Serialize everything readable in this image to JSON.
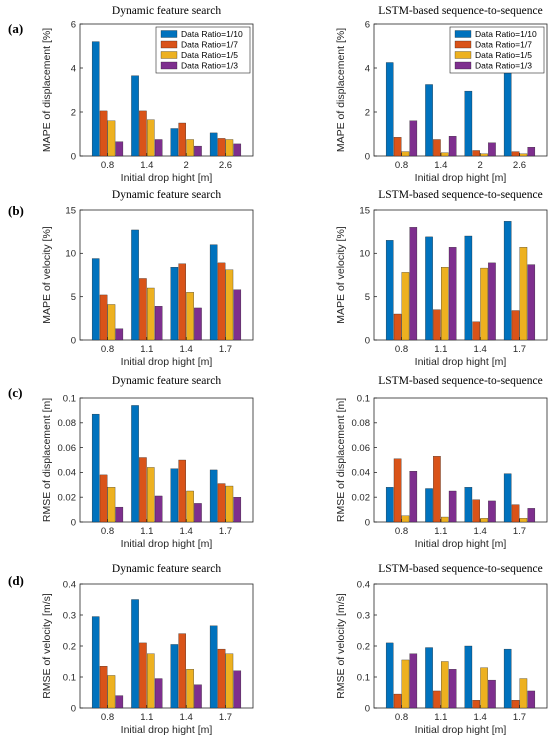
{
  "row_labels": [
    "(a)",
    "(b)",
    "(c)",
    "(d)"
  ],
  "legend": {
    "entries": [
      "Data Ratio=1/10",
      "Data Ratio=1/7",
      "Data Ratio=1/5",
      "Data Ratio=1/3"
    ],
    "placement": "top-right"
  },
  "colors": [
    "#0072BD",
    "#D95319",
    "#EDB120",
    "#7E2F8E"
  ],
  "chart_data": [
    {
      "type": "bar",
      "title": "Dynamic feature search",
      "xlabel": "Initial drop hight [m]",
      "ylabel": "MAPE of displacement [%]",
      "categories": [
        "0.8",
        "1.4",
        "2",
        "2.6"
      ],
      "ylim": [
        0,
        6
      ],
      "yticks": [
        "0",
        "2",
        "4",
        "6"
      ],
      "legend": true,
      "grid": false,
      "series": [
        {
          "name": "Data Ratio=1/10",
          "values": [
            5.2,
            3.65,
            1.25,
            1.05
          ]
        },
        {
          "name": "Data Ratio=1/7",
          "values": [
            2.05,
            2.05,
            1.5,
            0.8
          ]
        },
        {
          "name": "Data Ratio=1/5",
          "values": [
            1.6,
            1.65,
            0.75,
            0.75
          ]
        },
        {
          "name": "Data Ratio=1/3",
          "values": [
            0.65,
            0.75,
            0.45,
            0.55
          ]
        }
      ]
    },
    {
      "type": "bar",
      "title": "LSTM-based sequence-to-sequence",
      "xlabel": "Initial drop hight [m]",
      "ylabel": "MAPE of displacement [%]",
      "categories": [
        "0.8",
        "1.4",
        "2",
        "2.6"
      ],
      "ylim": [
        0,
        6
      ],
      "yticks": [
        "0",
        "2",
        "4",
        "6"
      ],
      "legend": true,
      "grid": false,
      "series": [
        {
          "name": "Data Ratio=1/10",
          "values": [
            4.25,
            3.25,
            2.95,
            3.9
          ]
        },
        {
          "name": "Data Ratio=1/7",
          "values": [
            0.85,
            0.75,
            0.25,
            0.2
          ]
        },
        {
          "name": "Data Ratio=1/5",
          "values": [
            0.2,
            0.15,
            0.1,
            0.1
          ]
        },
        {
          "name": "Data Ratio=1/3",
          "values": [
            1.6,
            0.9,
            0.6,
            0.4
          ]
        }
      ]
    },
    {
      "type": "bar",
      "title": "Dynamic feature search",
      "xlabel": "Initial drop hight [m]",
      "ylabel": "MAPE of velocity [%]",
      "categories": [
        "0.8",
        "1.1",
        "1.4",
        "1.7"
      ],
      "ylim": [
        0,
        15
      ],
      "yticks": [
        "0",
        "5",
        "10",
        "15"
      ],
      "legend": false,
      "grid": false,
      "series": [
        {
          "name": "Data Ratio=1/10",
          "values": [
            9.4,
            12.7,
            8.4,
            11.0
          ]
        },
        {
          "name": "Data Ratio=1/7",
          "values": [
            5.2,
            7.1,
            8.8,
            8.9
          ]
        },
        {
          "name": "Data Ratio=1/5",
          "values": [
            4.1,
            6.0,
            5.5,
            8.1
          ]
        },
        {
          "name": "Data Ratio=1/3",
          "values": [
            1.3,
            3.9,
            3.7,
            5.8
          ]
        }
      ]
    },
    {
      "type": "bar",
      "title": "LSTM-based sequence-to-sequence",
      "xlabel": "Initial drop hight [m]",
      "ylabel": "MAPE of velocity [%]",
      "categories": [
        "0.8",
        "1.1",
        "1.4",
        "1.7"
      ],
      "ylim": [
        0,
        15
      ],
      "yticks": [
        "0",
        "5",
        "10",
        "15"
      ],
      "legend": false,
      "grid": false,
      "series": [
        {
          "name": "Data Ratio=1/10",
          "values": [
            11.5,
            11.9,
            12.0,
            13.7
          ]
        },
        {
          "name": "Data Ratio=1/7",
          "values": [
            3.0,
            3.5,
            2.1,
            3.4
          ]
        },
        {
          "name": "Data Ratio=1/5",
          "values": [
            7.8,
            8.4,
            8.3,
            10.7
          ]
        },
        {
          "name": "Data Ratio=1/3",
          "values": [
            13.0,
            10.7,
            8.9,
            8.7
          ]
        }
      ]
    },
    {
      "type": "bar",
      "title": "Dynamic feature search",
      "xlabel": "Initial drop hight [m]",
      "ylabel": "RMSE of displacement [m]",
      "categories": [
        "0.8",
        "1.1",
        "1.4",
        "1.7"
      ],
      "ylim": [
        0,
        0.1
      ],
      "yticks": [
        "0",
        "0.02",
        "0.04",
        "0.06",
        "0.08",
        "0.1"
      ],
      "legend": false,
      "grid": false,
      "series": [
        {
          "name": "Data Ratio=1/10",
          "values": [
            0.087,
            0.094,
            0.043,
            0.042
          ]
        },
        {
          "name": "Data Ratio=1/7",
          "values": [
            0.038,
            0.052,
            0.05,
            0.031
          ]
        },
        {
          "name": "Data Ratio=1/5",
          "values": [
            0.028,
            0.044,
            0.025,
            0.029
          ]
        },
        {
          "name": "Data Ratio=1/3",
          "values": [
            0.012,
            0.021,
            0.015,
            0.02
          ]
        }
      ]
    },
    {
      "type": "bar",
      "title": "LSTM-based sequence-to-sequence",
      "xlabel": "Initial drop hight [m]",
      "ylabel": "RMSE of displacement [m]",
      "categories": [
        "0.8",
        "1.1",
        "1.4",
        "1.7"
      ],
      "ylim": [
        0,
        0.1
      ],
      "yticks": [
        "0",
        "0.02",
        "0.04",
        "0.06",
        "0.08",
        "0.1"
      ],
      "legend": false,
      "grid": false,
      "series": [
        {
          "name": "Data Ratio=1/10",
          "values": [
            0.028,
            0.027,
            0.028,
            0.039
          ]
        },
        {
          "name": "Data Ratio=1/7",
          "values": [
            0.051,
            0.053,
            0.018,
            0.014
          ]
        },
        {
          "name": "Data Ratio=1/5",
          "values": [
            0.005,
            0.004,
            0.003,
            0.003
          ]
        },
        {
          "name": "Data Ratio=1/3",
          "values": [
            0.041,
            0.025,
            0.017,
            0.011
          ]
        }
      ]
    },
    {
      "type": "bar",
      "title": "Dynamic feature search",
      "xlabel": "Initial drop hight [m]",
      "ylabel": "RMSE of velocity [m/s]",
      "categories": [
        "0.8",
        "1.1",
        "1.4",
        "1.7"
      ],
      "ylim": [
        0,
        0.4
      ],
      "yticks": [
        "0",
        "0.1",
        "0.2",
        "0.3",
        "0.4"
      ],
      "legend": false,
      "grid": false,
      "series": [
        {
          "name": "Data Ratio=1/10",
          "values": [
            0.295,
            0.35,
            0.205,
            0.265
          ]
        },
        {
          "name": "Data Ratio=1/7",
          "values": [
            0.135,
            0.21,
            0.24,
            0.19
          ]
        },
        {
          "name": "Data Ratio=1/5",
          "values": [
            0.105,
            0.175,
            0.125,
            0.175
          ]
        },
        {
          "name": "Data Ratio=1/3",
          "values": [
            0.04,
            0.095,
            0.075,
            0.12
          ]
        }
      ]
    },
    {
      "type": "bar",
      "title": "LSTM-based sequence-to-sequence",
      "xlabel": "Initial drop hight [m]",
      "ylabel": "RMSE of velocity [m/s]",
      "categories": [
        "0.8",
        "1.1",
        "1.4",
        "1.7"
      ],
      "ylim": [
        0,
        0.4
      ],
      "yticks": [
        "0",
        "0.1",
        "0.2",
        "0.3",
        "0.4"
      ],
      "legend": false,
      "grid": false,
      "series": [
        {
          "name": "Data Ratio=1/10",
          "values": [
            0.21,
            0.195,
            0.2,
            0.19
          ]
        },
        {
          "name": "Data Ratio=1/7",
          "values": [
            0.045,
            0.055,
            0.025,
            0.025
          ]
        },
        {
          "name": "Data Ratio=1/5",
          "values": [
            0.155,
            0.15,
            0.13,
            0.095
          ]
        },
        {
          "name": "Data Ratio=1/3",
          "values": [
            0.175,
            0.125,
            0.09,
            0.055
          ]
        }
      ]
    }
  ]
}
